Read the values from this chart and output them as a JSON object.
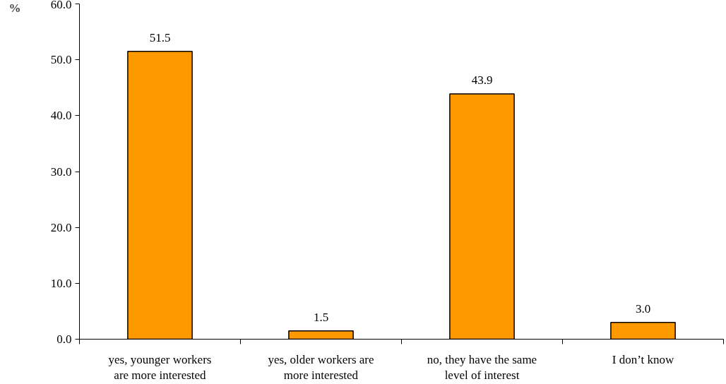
{
  "chart_data": {
    "type": "bar",
    "ylabel": "%",
    "categories": [
      "yes, younger workers\nare more interested",
      "yes, older workers are\nmore interested",
      "no, they have the same\nlevel of interest",
      "I don’t know"
    ],
    "values": [
      51.5,
      1.5,
      43.9,
      3.0
    ],
    "color": "#ff9900",
    "value_labels": [
      "51.5",
      "1.5",
      "43.9",
      "3.0"
    ],
    "ylim": [
      0,
      60
    ],
    "yticks": [
      {
        "value": 0,
        "label": "0.0"
      },
      {
        "value": 10,
        "label": "10.0"
      },
      {
        "value": 20,
        "label": "20.0"
      },
      {
        "value": 30,
        "label": "30.0"
      },
      {
        "value": 40,
        "label": "40.0"
      },
      {
        "value": 50,
        "label": "50.0"
      },
      {
        "value": 60,
        "label": "60.0"
      }
    ],
    "grid": false
  }
}
